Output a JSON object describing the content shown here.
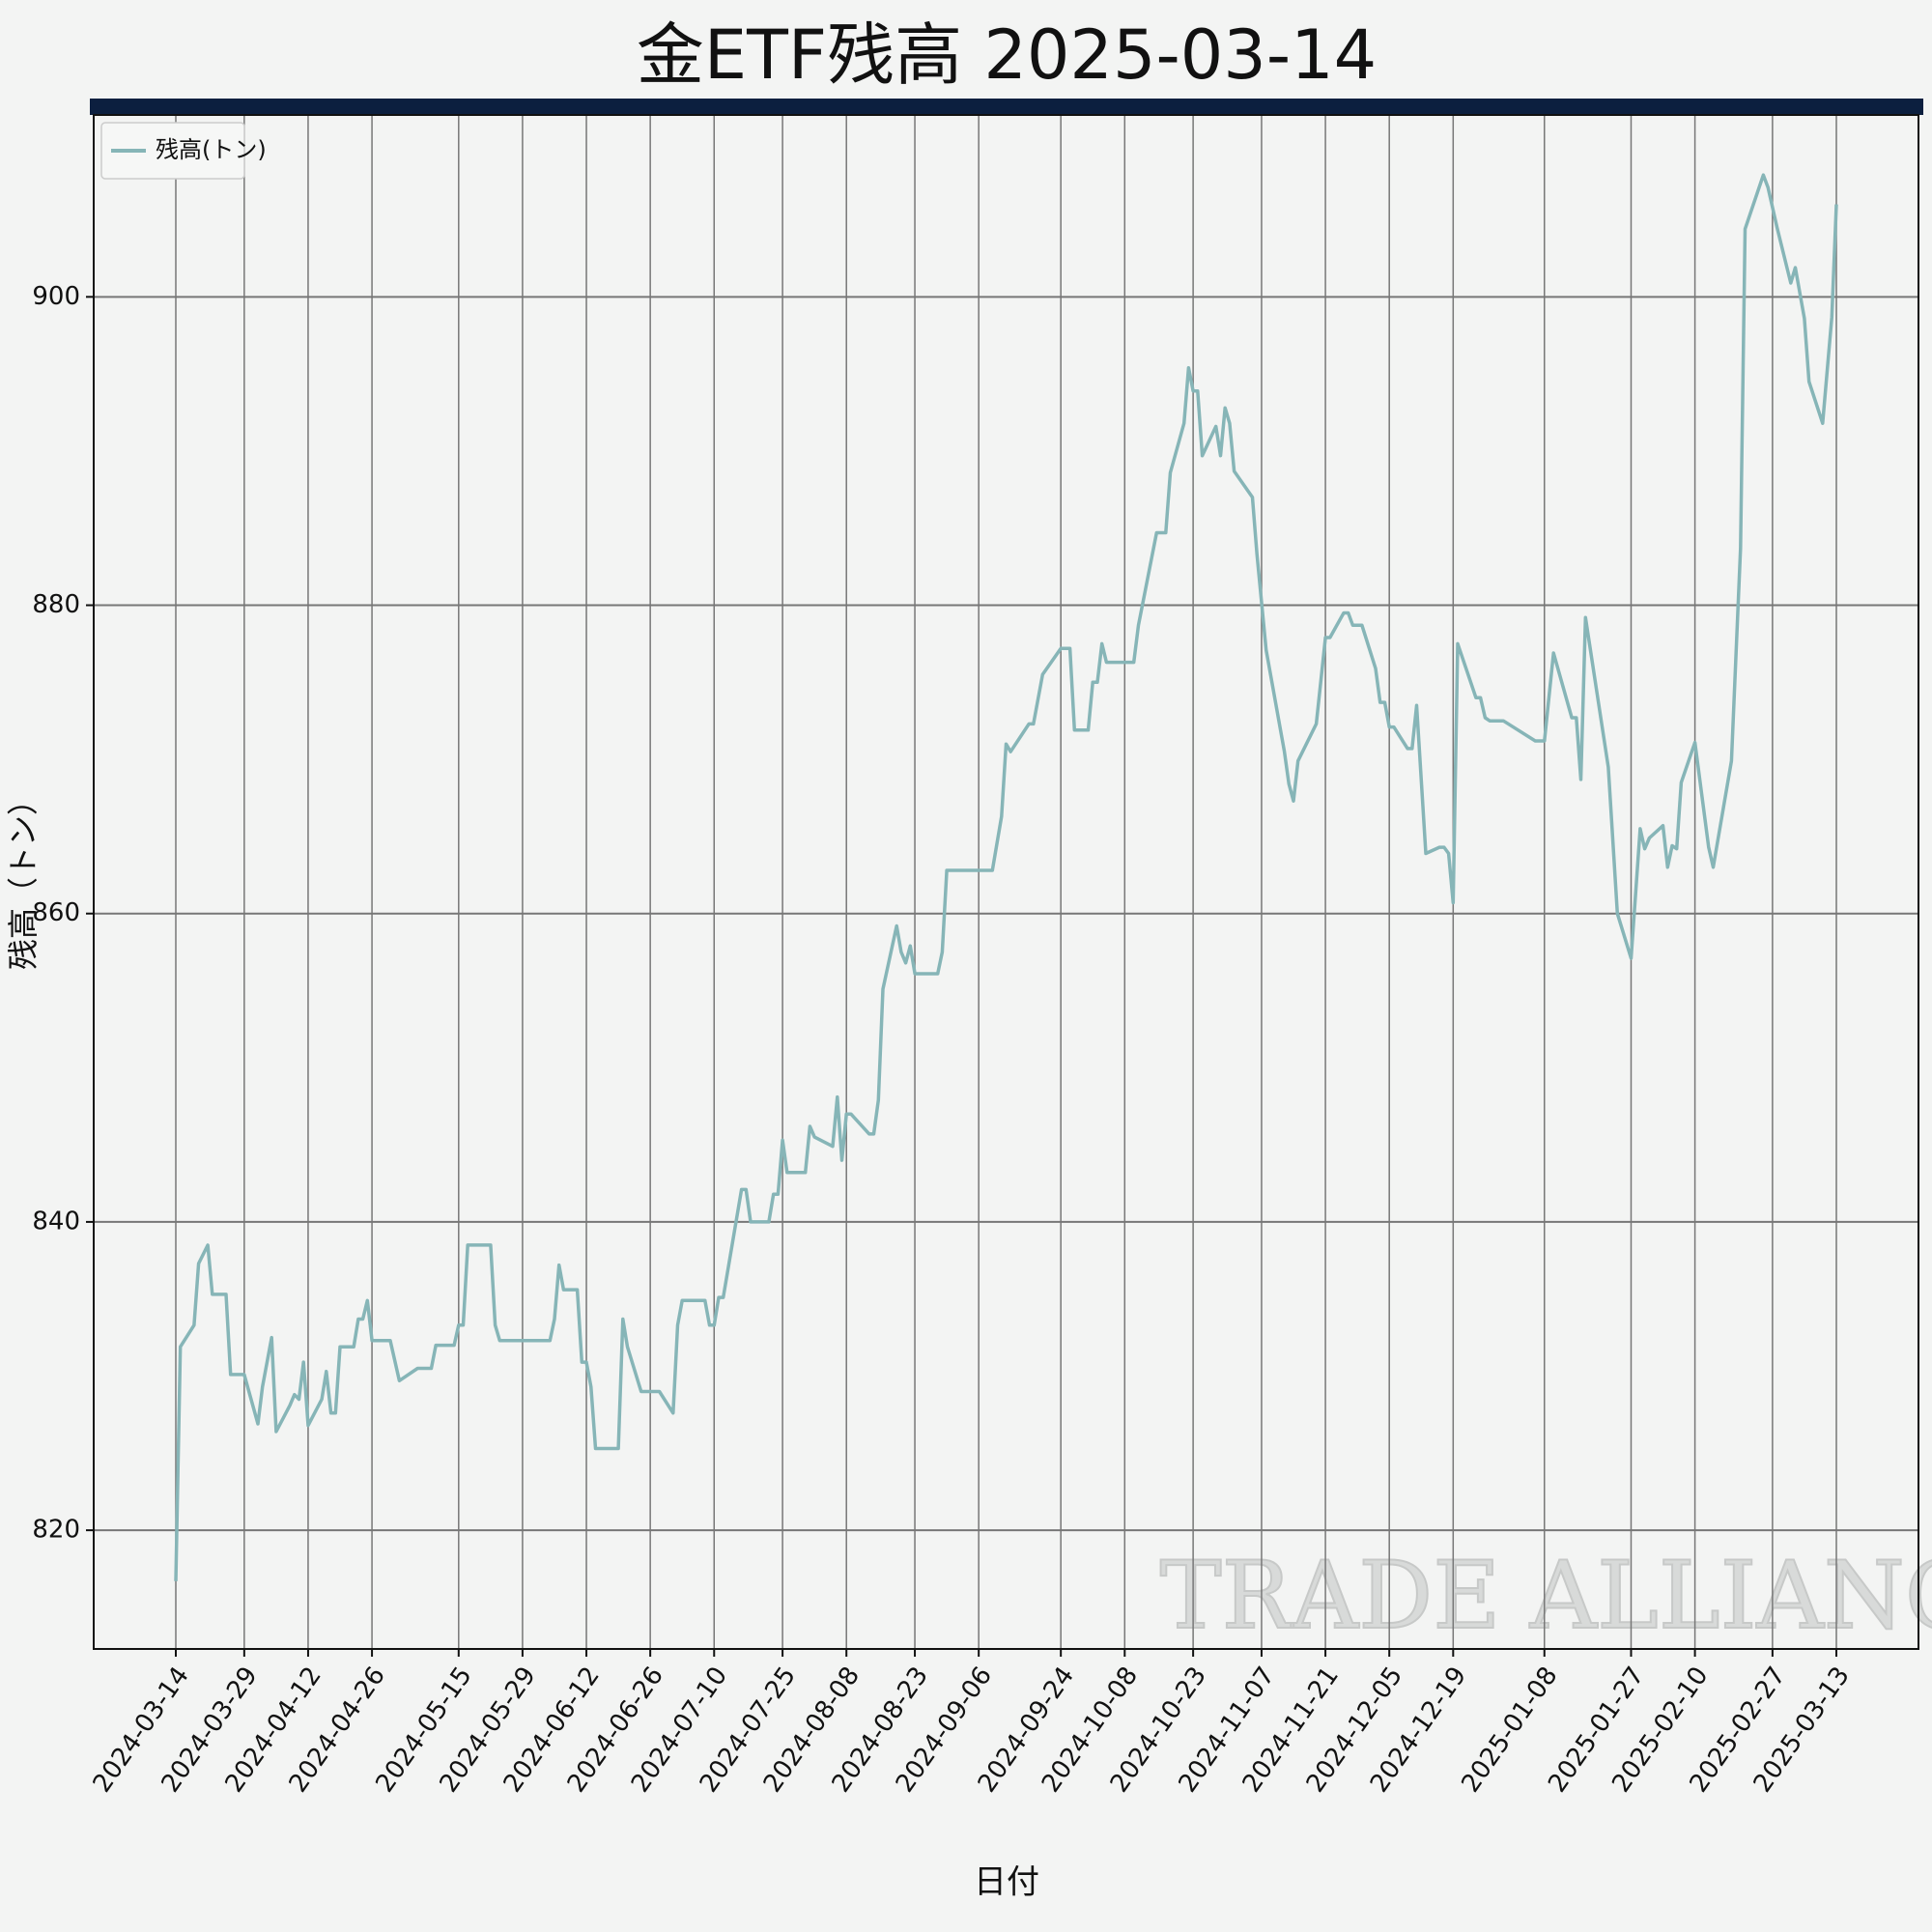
{
  "chart_data": {
    "type": "line",
    "title": "金ETF残高 2025-03-14",
    "xlabel": "日付",
    "ylabel": "残高（トン）",
    "watermark": "TRADE ALLIANCE",
    "legend": "upper left",
    "grid": true,
    "xlim": [
      "2024-02-25",
      "2025-03-31"
    ],
    "ylim": [
      812.3,
      911.8
    ],
    "yticks": [
      820,
      840,
      860,
      880,
      900
    ],
    "xticks": [
      "2024-03-14",
      "2024-03-29",
      "2024-04-12",
      "2024-04-26",
      "2024-05-15",
      "2024-05-29",
      "2024-06-12",
      "2024-06-26",
      "2024-07-10",
      "2024-07-25",
      "2024-08-08",
      "2024-08-23",
      "2024-09-06",
      "2024-09-24",
      "2024-10-08",
      "2024-10-23",
      "2024-11-07",
      "2024-11-21",
      "2024-12-05",
      "2024-12-19",
      "2025-01-08",
      "2025-01-27",
      "2025-02-10",
      "2025-02-27",
      "2025-03-13"
    ],
    "x": [
      "2024-03-14",
      "2024-03-15",
      "2024-03-18",
      "2024-03-19",
      "2024-03-21",
      "2024-03-22",
      "2024-03-25",
      "2024-03-26",
      "2024-03-29",
      "2024-04-01",
      "2024-04-02",
      "2024-04-04",
      "2024-04-05",
      "2024-04-08",
      "2024-04-09",
      "2024-04-10",
      "2024-04-11",
      "2024-04-12",
      "2024-04-15",
      "2024-04-16",
      "2024-04-17",
      "2024-04-18",
      "2024-04-19",
      "2024-04-22",
      "2024-04-23",
      "2024-04-24",
      "2024-04-25",
      "2024-04-26",
      "2024-04-30",
      "2024-05-02",
      "2024-05-06",
      "2024-05-09",
      "2024-05-10",
      "2024-05-14",
      "2024-05-15",
      "2024-05-16",
      "2024-05-17",
      "2024-05-22",
      "2024-05-23",
      "2024-05-24",
      "2024-06-04",
      "2024-06-05",
      "2024-06-06",
      "2024-06-07",
      "2024-06-10",
      "2024-06-11",
      "2024-06-12",
      "2024-06-13",
      "2024-06-14",
      "2024-06-19",
      "2024-06-20",
      "2024-06-21",
      "2024-06-24",
      "2024-06-28",
      "2024-07-01",
      "2024-07-02",
      "2024-07-03",
      "2024-07-08",
      "2024-07-09",
      "2024-07-10",
      "2024-07-11",
      "2024-07-12",
      "2024-07-16",
      "2024-07-17",
      "2024-07-18",
      "2024-07-22",
      "2024-07-23",
      "2024-07-24",
      "2024-07-25",
      "2024-07-26",
      "2024-07-30",
      "2024-07-31",
      "2024-08-01",
      "2024-08-05",
      "2024-08-06",
      "2024-08-07",
      "2024-08-08",
      "2024-08-09",
      "2024-08-13",
      "2024-08-14",
      "2024-08-15",
      "2024-08-16",
      "2024-08-19",
      "2024-08-20",
      "2024-08-21",
      "2024-08-22",
      "2024-08-23",
      "2024-08-28",
      "2024-08-29",
      "2024-08-30",
      "2024-09-09",
      "2024-09-11",
      "2024-09-12",
      "2024-09-13",
      "2024-09-17",
      "2024-09-18",
      "2024-09-20",
      "2024-09-24",
      "2024-09-26",
      "2024-09-27",
      "2024-09-30",
      "2024-10-01",
      "2024-10-02",
      "2024-10-03",
      "2024-10-04",
      "2024-10-10",
      "2024-10-11",
      "2024-10-15",
      "2024-10-17",
      "2024-10-18",
      "2024-10-21",
      "2024-10-22",
      "2024-10-23",
      "2024-10-24",
      "2024-10-25",
      "2024-10-28",
      "2024-10-29",
      "2024-10-30",
      "2024-10-31",
      "2024-11-01",
      "2024-11-05",
      "2024-11-06",
      "2024-11-08",
      "2024-11-12",
      "2024-11-13",
      "2024-11-14",
      "2024-11-15",
      "2024-11-19",
      "2024-11-21",
      "2024-11-22",
      "2024-11-25",
      "2024-11-26",
      "2024-11-27",
      "2024-11-29",
      "2024-12-02",
      "2024-12-03",
      "2024-12-04",
      "2024-12-05",
      "2024-12-06",
      "2024-12-09",
      "2024-12-10",
      "2024-12-11",
      "2024-12-13",
      "2024-12-16",
      "2024-12-17",
      "2024-12-18",
      "2024-12-19",
      "2024-12-20",
      "2024-12-24",
      "2024-12-25",
      "2024-12-26",
      "2024-12-27",
      "2024-12-30",
      "2025-01-06",
      "2025-01-08",
      "2025-01-10",
      "2025-01-14",
      "2025-01-15",
      "2025-01-16",
      "2025-01-17",
      "2025-01-22",
      "2025-01-24",
      "2025-01-27",
      "2025-01-29",
      "2025-01-30",
      "2025-01-31",
      "2025-02-03",
      "2025-02-04",
      "2025-02-05",
      "2025-02-06",
      "2025-02-07",
      "2025-02-10",
      "2025-02-13",
      "2025-02-14",
      "2025-02-18",
      "2025-02-20",
      "2025-02-21",
      "2025-02-25",
      "2025-02-26",
      "2025-02-28",
      "2025-03-03",
      "2025-03-04",
      "2025-03-06",
      "2025-03-07",
      "2025-03-10",
      "2025-03-12",
      "2025-03-13"
    ],
    "series": [
      {
        "name": "残高(トン)",
        "color": "#86b5b7",
        "values": [
          816.7,
          831.9,
          833.3,
          837.3,
          838.5,
          835.3,
          835.3,
          830.1,
          830.1,
          826.9,
          829.3,
          832.5,
          826.4,
          828.1,
          828.8,
          828.5,
          830.9,
          826.8,
          828.5,
          830.3,
          827.6,
          827.6,
          831.9,
          831.9,
          833.7,
          833.7,
          834.9,
          832.3,
          832.3,
          829.7,
          830.5,
          830.5,
          832.0,
          832.0,
          833.3,
          833.3,
          838.5,
          838.5,
          833.3,
          832.3,
          832.3,
          833.7,
          837.2,
          835.6,
          835.6,
          830.9,
          830.9,
          829.3,
          825.3,
          825.3,
          833.7,
          831.9,
          829.0,
          829.0,
          827.6,
          833.3,
          834.9,
          834.9,
          833.3,
          833.3,
          835.1,
          835.1,
          842.1,
          842.1,
          840.0,
          840.0,
          841.8,
          841.8,
          845.3,
          843.2,
          843.2,
          846.2,
          845.5,
          844.9,
          848.1,
          844.0,
          847.0,
          847.0,
          845.7,
          845.7,
          847.9,
          855.1,
          859.2,
          857.5,
          856.8,
          857.9,
          856.1,
          856.1,
          857.5,
          862.8,
          862.8,
          866.3,
          871.0,
          870.5,
          872.3,
          872.3,
          875.5,
          877.2,
          877.2,
          871.9,
          871.9,
          875.0,
          875.0,
          877.5,
          876.3,
          876.3,
          878.7,
          884.7,
          884.7,
          888.6,
          891.8,
          895.4,
          893.9,
          893.9,
          889.7,
          891.6,
          889.7,
          892.8,
          891.8,
          888.7,
          887.0,
          883.3,
          877.1,
          870.5,
          868.4,
          867.3,
          869.9,
          872.3,
          877.9,
          877.9,
          879.5,
          879.5,
          878.7,
          878.7,
          875.9,
          873.7,
          873.7,
          872.1,
          872.1,
          870.7,
          870.7,
          873.5,
          863.9,
          864.3,
          864.3,
          863.9,
          860.7,
          877.5,
          874.0,
          874.0,
          872.7,
          872.5,
          872.5,
          871.2,
          871.2,
          876.9,
          872.7,
          872.7,
          868.7,
          879.2,
          869.5,
          860.0,
          857.1,
          865.5,
          864.2,
          864.9,
          865.7,
          863.0,
          864.4,
          864.2,
          868.5,
          871.1,
          864.3,
          863.0,
          869.9,
          883.7,
          904.4,
          907.9,
          907.1,
          904.5,
          900.9,
          901.9,
          898.6,
          894.5,
          891.8,
          898.7,
          906.0
        ]
      }
    ]
  }
}
